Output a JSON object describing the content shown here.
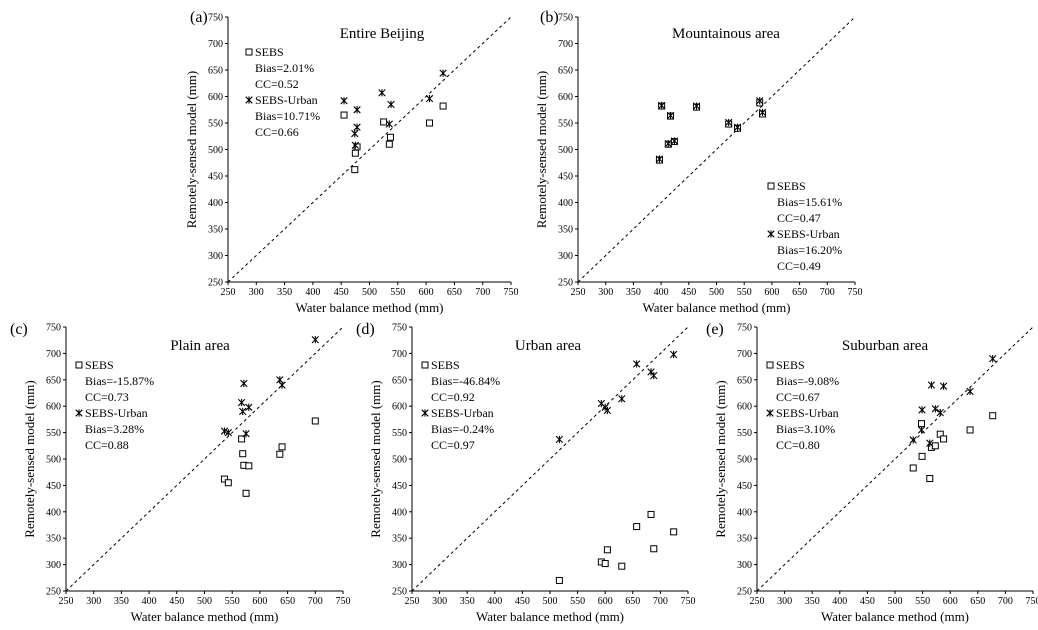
{
  "chart_data": [
    {
      "type": "scatter",
      "panel_label": "(a)",
      "title": "Entire Beijing",
      "xlabel": "Water balance method (mm)",
      "ylabel": "Remotely-sensed model (mm)",
      "xlim": [
        250,
        750
      ],
      "ylim": [
        250,
        750
      ],
      "xticks": [
        "250",
        "300",
        "350",
        "400",
        "450",
        "500",
        "550",
        "600",
        "650",
        "700",
        "750"
      ],
      "yticks": [
        "250",
        "300",
        "350",
        "400",
        "450",
        "500",
        "550",
        "600",
        "650",
        "700",
        "750"
      ],
      "reference_line": "1:1",
      "grid": false,
      "legend_position": "top-left",
      "series": [
        {
          "name": "SEBS",
          "marker": "square",
          "stats": [
            "Bias=2.01%",
            "CC=0.52"
          ],
          "points": [
            [
              455,
              565
            ],
            [
              474,
              462
            ],
            [
              475,
              493
            ],
            [
              478,
              505
            ],
            [
              525,
              552
            ],
            [
              535,
              510
            ],
            [
              537,
              523
            ],
            [
              606,
              550
            ],
            [
              630,
              582
            ]
          ]
        },
        {
          "name": "SEBS-Urban",
          "marker": "asterisk",
          "stats": [
            "Bias=10.71%",
            "CC=0.66"
          ],
          "points": [
            [
              455,
              592
            ],
            [
              474,
              530
            ],
            [
              475,
              508
            ],
            [
              478,
              542
            ],
            [
              478,
              575
            ],
            [
              522,
              607
            ],
            [
              535,
              548
            ],
            [
              538,
              585
            ],
            [
              606,
              596
            ],
            [
              630,
              644
            ]
          ]
        }
      ]
    },
    {
      "type": "scatter",
      "panel_label": "(b)",
      "title": "Mountainous area",
      "xlabel": "Water balance method (mm)",
      "ylabel": "Remotely-sensed model (mm)",
      "xlim": [
        250,
        750
      ],
      "ylim": [
        250,
        750
      ],
      "xticks": [
        "250",
        "300",
        "350",
        "400",
        "450",
        "500",
        "550",
        "600",
        "650",
        "700",
        "750"
      ],
      "yticks": [
        "250",
        "300",
        "350",
        "400",
        "450",
        "500",
        "550",
        "600",
        "650",
        "700",
        "750"
      ],
      "reference_line": "1:1",
      "grid": false,
      "legend_position": "bottom-right",
      "series": [
        {
          "name": "SEBS",
          "marker": "square",
          "stats": [
            "Bias=15.61%",
            "CC=0.47"
          ],
          "points": [
            [
              397,
              480
            ],
            [
              401,
              582
            ],
            [
              413,
              510
            ],
            [
              417,
              563
            ],
            [
              424,
              515
            ],
            [
              464,
              580
            ],
            [
              522,
              548
            ],
            [
              538,
              540
            ],
            [
              578,
              588
            ],
            [
              583,
              567
            ]
          ]
        },
        {
          "name": "SEBS-Urban",
          "marker": "asterisk",
          "stats": [
            "Bias=16.20%",
            "CC=0.49"
          ],
          "points": [
            [
              397,
              482
            ],
            [
              401,
              583
            ],
            [
              413,
              511
            ],
            [
              417,
              564
            ],
            [
              424,
              516
            ],
            [
              464,
              582
            ],
            [
              522,
              551
            ],
            [
              538,
              542
            ],
            [
              578,
              592
            ],
            [
              583,
              570
            ]
          ]
        }
      ]
    },
    {
      "type": "scatter",
      "panel_label": "(c)",
      "title": "Plain area",
      "xlabel": "Water balance method (mm)",
      "ylabel": "Remotely-sensed model (mm)",
      "xlim": [
        250,
        750
      ],
      "ylim": [
        250,
        750
      ],
      "xticks": [
        "250",
        "300",
        "350",
        "400",
        "450",
        "500",
        "550",
        "600",
        "650",
        "700",
        "750"
      ],
      "yticks": [
        "250",
        "300",
        "350",
        "400",
        "450",
        "500",
        "550",
        "600",
        "650",
        "700",
        "750"
      ],
      "reference_line": "1:1",
      "grid": false,
      "legend_position": "top-left",
      "series": [
        {
          "name": "SEBS",
          "marker": "square",
          "stats": [
            "Bias=-15.87%",
            "CC=0.73"
          ],
          "points": [
            [
              536,
              462
            ],
            [
              543,
              455
            ],
            [
              567,
              538
            ],
            [
              569,
              510
            ],
            [
              571,
              488
            ],
            [
              575,
              435
            ],
            [
              580,
              487
            ],
            [
              636,
              509
            ],
            [
              640,
              523
            ],
            [
              700,
              572
            ]
          ]
        },
        {
          "name": "SEBS-Urban",
          "marker": "asterisk",
          "stats": [
            "Bias=3.28%",
            "CC=0.88"
          ],
          "points": [
            [
              536,
              553
            ],
            [
              543,
              550
            ],
            [
              567,
              607
            ],
            [
              569,
              590
            ],
            [
              571,
              643
            ],
            [
              575,
              548
            ],
            [
              580,
              598
            ],
            [
              636,
              650
            ],
            [
              640,
              640
            ],
            [
              700,
              726
            ]
          ]
        }
      ]
    },
    {
      "type": "scatter",
      "panel_label": "(d)",
      "title": "Urban area",
      "xlabel": "Water balance method (mm)",
      "ylabel": "Remotely-sensed model (mm)",
      "xlim": [
        250,
        750
      ],
      "ylim": [
        250,
        750
      ],
      "xticks": [
        "250",
        "300",
        "350",
        "400",
        "450",
        "500",
        "550",
        "600",
        "650",
        "700",
        "750"
      ],
      "yticks": [
        "250",
        "300",
        "350",
        "400",
        "450",
        "500",
        "550",
        "600",
        "650",
        "700",
        "750"
      ],
      "reference_line": "1:1",
      "grid": false,
      "legend_position": "top-left",
      "series": [
        {
          "name": "SEBS",
          "marker": "square",
          "stats": [
            "Bias=-46.84%",
            "CC=0.92"
          ],
          "points": [
            [
              517,
              270
            ],
            [
              593,
              305
            ],
            [
              600,
              302
            ],
            [
              604,
              328
            ],
            [
              630,
              297
            ],
            [
              657,
              372
            ],
            [
              683,
              395
            ],
            [
              688,
              330
            ],
            [
              724,
              362
            ]
          ]
        },
        {
          "name": "SEBS-Urban",
          "marker": "asterisk",
          "stats": [
            "Bias=-0.24%",
            "CC=0.97"
          ],
          "points": [
            [
              517,
              537
            ],
            [
              593,
              605
            ],
            [
              600,
              598
            ],
            [
              604,
              592
            ],
            [
              630,
              614
            ],
            [
              657,
              680
            ],
            [
              683,
              665
            ],
            [
              688,
              658
            ],
            [
              724,
              698
            ]
          ]
        }
      ]
    },
    {
      "type": "scatter",
      "panel_label": "(e)",
      "title": "Suburban area",
      "xlabel": "Water balance method (mm)",
      "ylabel": "Remotely-sensed model (mm)",
      "xlim": [
        250,
        750
      ],
      "ylim": [
        250,
        750
      ],
      "xticks": [
        "250",
        "300",
        "350",
        "400",
        "450",
        "500",
        "550",
        "600",
        "650",
        "700",
        "750"
      ],
      "yticks": [
        "250",
        "300",
        "350",
        "400",
        "450",
        "500",
        "550",
        "600",
        "650",
        "700",
        "750"
      ],
      "reference_line": "1:1",
      "grid": false,
      "legend_position": "top-left",
      "series": [
        {
          "name": "SEBS",
          "marker": "square",
          "stats": [
            "Bias=-9.08%",
            "CC=0.67"
          ],
          "points": [
            [
              533,
              483
            ],
            [
              548,
              567
            ],
            [
              549,
              505
            ],
            [
              563,
              463
            ],
            [
              566,
              522
            ],
            [
              573,
              525
            ],
            [
              582,
              547
            ],
            [
              588,
              538
            ],
            [
              636,
              555
            ],
            [
              677,
              582
            ]
          ]
        },
        {
          "name": "SEBS-Urban",
          "marker": "asterisk",
          "stats": [
            "Bias=3.10%",
            "CC=0.80"
          ],
          "points": [
            [
              533,
              536
            ],
            [
              548,
              555
            ],
            [
              549,
              593
            ],
            [
              563,
              530
            ],
            [
              566,
              640
            ],
            [
              573,
              595
            ],
            [
              582,
              588
            ],
            [
              588,
              638
            ],
            [
              636,
              628
            ],
            [
              677,
              690
            ]
          ]
        }
      ]
    }
  ]
}
